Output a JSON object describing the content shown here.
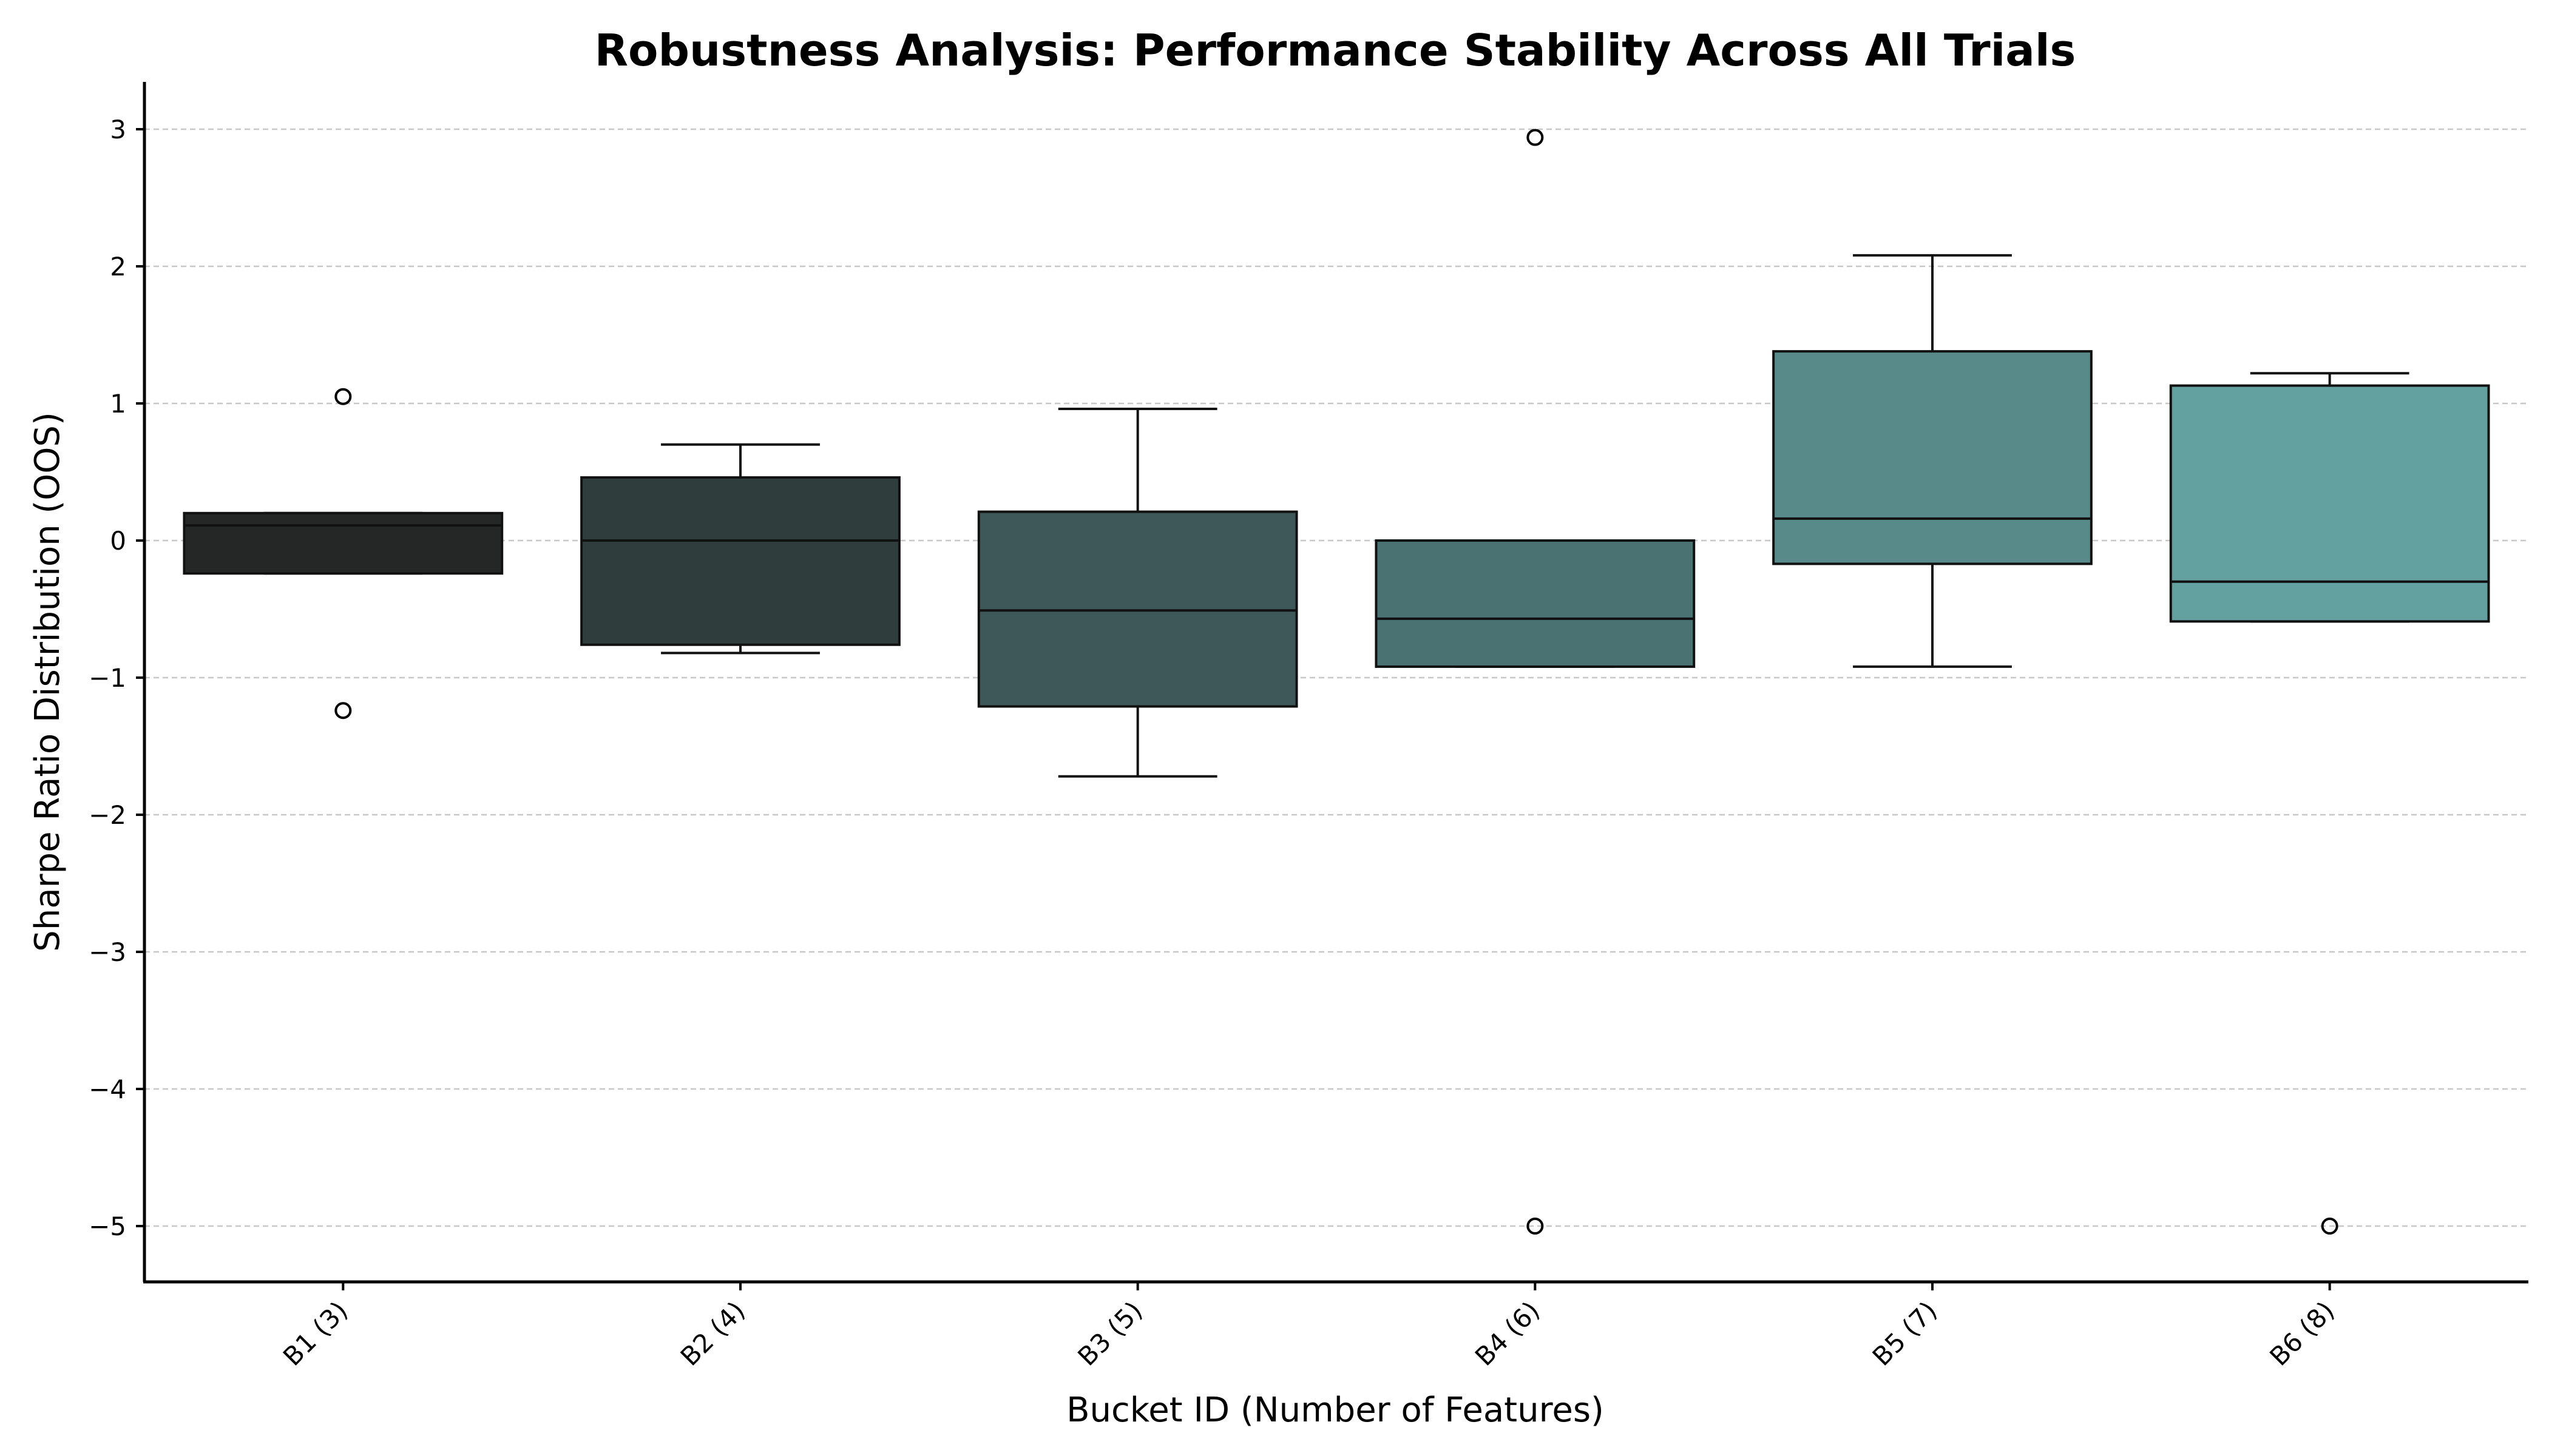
{
  "chart_data": {
    "type": "box",
    "title": "Robustness Analysis: Performance Stability Across All Trials",
    "xlabel": "Bucket ID (Number of Features)",
    "ylabel": "Sharpe Ratio Distribution (OOS)",
    "ylim": [
      -5.4,
      3.35
    ],
    "yticks": [
      3,
      2,
      1,
      0,
      -1,
      -2,
      -3,
      -4,
      -5
    ],
    "grid": "y",
    "categories": [
      "B1 (3)",
      "B2 (4)",
      "B3 (5)",
      "B4 (6)",
      "B5 (7)",
      "B6 (8)"
    ],
    "series": [
      {
        "category": "B1 (3)",
        "whisker_low": -0.24,
        "q1": -0.24,
        "median": 0.11,
        "q3": 0.2,
        "whisker_high": 0.2,
        "outliers": [
          1.05,
          -1.24
        ],
        "color": "#252726"
      },
      {
        "category": "B2 (4)",
        "whisker_low": -0.82,
        "q1": -0.76,
        "median": 0.0,
        "q3": 0.46,
        "whisker_high": 0.7,
        "outliers": [],
        "color": "#2f3e3d"
      },
      {
        "category": "B3 (5)",
        "whisker_low": -1.72,
        "q1": -1.21,
        "median": -0.51,
        "q3": 0.21,
        "whisker_high": 0.96,
        "outliers": [],
        "color": "#3e5859"
      },
      {
        "category": "B4 (6)",
        "whisker_low": -0.92,
        "q1": -0.92,
        "median": -0.57,
        "q3": 0.0,
        "whisker_high": 0.0,
        "outliers": [
          2.94,
          -5.0
        ],
        "color": "#4a7273"
      },
      {
        "category": "B5 (7)",
        "whisker_low": -0.92,
        "q1": -0.17,
        "median": 0.16,
        "q3": 1.38,
        "whisker_high": 2.08,
        "outliers": [],
        "color": "#588a89"
      },
      {
        "category": "B6 (8)",
        "whisker_low": -0.59,
        "q1": -0.59,
        "median": -0.3,
        "q3": 1.13,
        "whisker_high": 1.22,
        "outliers": [
          -5.0
        ],
        "color": "#62a1a0"
      }
    ]
  }
}
